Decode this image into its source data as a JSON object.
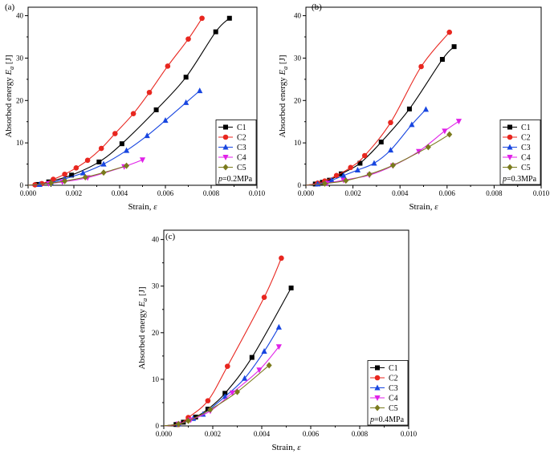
{
  "chart_data": [
    {
      "type": "line",
      "panel_label": "(a)",
      "xlabel": "Strain, ε",
      "ylabel": "Absorbed energy E",
      "ylabel_sub": "a",
      "ylabel_unit": " [J]",
      "xlim": [
        0,
        0.01
      ],
      "ylim": [
        0,
        42
      ],
      "xticks": [
        0,
        0.002,
        0.004,
        0.006,
        0.008,
        0.01
      ],
      "xtick_labels": [
        "0.000",
        "0.002",
        "0.004",
        "0.006",
        "0.008",
        "0.010"
      ],
      "yticks": [
        0,
        10,
        20,
        30,
        40
      ],
      "ytick_labels": [
        "0",
        "10",
        "20",
        "30",
        "40"
      ],
      "legend_position": "bottom-right",
      "legend_note": "p=0.2MPa",
      "series": [
        {
          "name": "C1",
          "color": "#000000",
          "marker": "square",
          "x": [
            0,
            0.0004,
            0.0009,
            0.0019,
            0.0031,
            0.0041,
            0.0056,
            0.0069,
            0.0082,
            0.0088
          ],
          "y": [
            0,
            0.2,
            0.8,
            2.4,
            5.5,
            9.8,
            17.8,
            25.5,
            36.2,
            39.4
          ]
        },
        {
          "name": "C2",
          "color": "#e8261f",
          "marker": "circle",
          "x": [
            0,
            0.0003,
            0.0006,
            0.0011,
            0.0016,
            0.0021,
            0.0026,
            0.0032,
            0.0038,
            0.0046,
            0.0053,
            0.0061,
            0.007,
            0.0076
          ],
          "y": [
            0,
            0.1,
            0.4,
            1.4,
            2.6,
            4.1,
            5.9,
            8.7,
            12.2,
            16.9,
            21.9,
            28.1,
            34.5,
            39.4
          ]
        },
        {
          "name": "C3",
          "color": "#1846e0",
          "marker": "triangle-up",
          "x": [
            0,
            0.0005,
            0.001,
            0.0016,
            0.0024,
            0.0033,
            0.0043,
            0.0052,
            0.006,
            0.0069,
            0.0075
          ],
          "y": [
            0,
            0.2,
            0.6,
            1.5,
            2.9,
            5.0,
            8.2,
            11.7,
            15.3,
            19.5,
            22.3
          ]
        },
        {
          "name": "C4",
          "color": "#e020e8",
          "marker": "triangle-down",
          "x": [
            0,
            0.0009,
            0.0015,
            0.0026,
            0.0042,
            0.005
          ],
          "y": [
            0,
            0.4,
            0.8,
            1.8,
            4.4,
            6.0
          ]
        },
        {
          "name": "C5",
          "color": "#7a7a1c",
          "marker": "diamond",
          "x": [
            0,
            0.001,
            0.0016,
            0.0025,
            0.0033,
            0.0043
          ],
          "y": [
            0,
            0.5,
            1.0,
            1.9,
            3.0,
            4.6
          ]
        }
      ]
    },
    {
      "type": "line",
      "panel_label": "(b)",
      "xlabel": "Strain, ε",
      "ylabel": "Absorbed energy E",
      "ylabel_sub": "a",
      "ylabel_unit": " [J]",
      "xlim": [
        0,
        0.01
      ],
      "ylim": [
        0,
        42
      ],
      "xticks": [
        0,
        0.002,
        0.004,
        0.006,
        0.008,
        0.01
      ],
      "xtick_labels": [
        "0.000",
        "0.002",
        "0.004",
        "0.006",
        "0.008",
        "0.010"
      ],
      "yticks": [
        0,
        10,
        20,
        30,
        40
      ],
      "ytick_labels": [
        "0",
        "10",
        "20",
        "30",
        "40"
      ],
      "legend_position": "bottom-right",
      "legend_note": "p=0.3MPa",
      "series": [
        {
          "name": "C1",
          "color": "#000000",
          "marker": "square",
          "x": [
            0,
            0.0004,
            0.0007,
            0.001,
            0.0015,
            0.0023,
            0.0032,
            0.0044,
            0.0058,
            0.0063
          ],
          "y": [
            0,
            0.3,
            0.7,
            1.2,
            2.7,
            5.2,
            10.2,
            18.0,
            29.7,
            32.7
          ]
        },
        {
          "name": "C2",
          "color": "#e8261f",
          "marker": "circle",
          "x": [
            0,
            0.0005,
            0.0008,
            0.0013,
            0.0019,
            0.0025,
            0.0036,
            0.0049,
            0.0061
          ],
          "y": [
            0,
            0.5,
            1.0,
            2.3,
            4.2,
            7.0,
            14.8,
            28.0,
            36.1
          ]
        },
        {
          "name": "C3",
          "color": "#1846e0",
          "marker": "triangle-up",
          "x": [
            0,
            0.0005,
            0.0011,
            0.0016,
            0.0022,
            0.0029,
            0.0036,
            0.0045,
            0.0051
          ],
          "y": [
            0,
            0.3,
            1.2,
            2.3,
            3.6,
            5.2,
            8.3,
            14.3,
            17.9
          ]
        },
        {
          "name": "C4",
          "color": "#e020e8",
          "marker": "triangle-down",
          "x": [
            0,
            0.0009,
            0.0016,
            0.0027,
            0.0037,
            0.0048,
            0.0059,
            0.0065
          ],
          "y": [
            0,
            0.5,
            1.2,
            2.4,
            4.6,
            8.0,
            12.8,
            15.1
          ]
        },
        {
          "name": "C5",
          "color": "#7a7a1c",
          "marker": "diamond",
          "x": [
            0,
            0.0008,
            0.0017,
            0.0027,
            0.0037,
            0.0052,
            0.0061
          ],
          "y": [
            0,
            0.4,
            1.1,
            2.6,
            4.7,
            9.0,
            12.0
          ]
        }
      ]
    },
    {
      "type": "line",
      "panel_label": "(c)",
      "xlabel": "Strain, ε",
      "ylabel": "Absorbed energy E",
      "ylabel_sub": "a",
      "ylabel_unit": " [J]",
      "xlim": [
        0,
        0.01
      ],
      "ylim": [
        0,
        42
      ],
      "xticks": [
        0,
        0.002,
        0.004,
        0.006,
        0.008,
        0.01
      ],
      "xtick_labels": [
        "0.000",
        "0.002",
        "0.004",
        "0.006",
        "0.008",
        "0.010"
      ],
      "yticks": [
        0,
        10,
        20,
        30,
        40
      ],
      "ytick_labels": [
        "0",
        "10",
        "20",
        "30",
        "40"
      ],
      "legend_position": "bottom-right",
      "legend_note": "p=0.4MPa",
      "series": [
        {
          "name": "C1",
          "color": "#000000",
          "marker": "square",
          "x": [
            0,
            0.0005,
            0.0008,
            0.0013,
            0.0018,
            0.0025,
            0.0036,
            0.0052
          ],
          "y": [
            0,
            0.3,
            0.8,
            1.9,
            3.6,
            7.0,
            14.7,
            29.6
          ]
        },
        {
          "name": "C2",
          "color": "#e8261f",
          "marker": "circle",
          "x": [
            0,
            0.0006,
            0.001,
            0.0018,
            0.0026,
            0.0041,
            0.0048
          ],
          "y": [
            0,
            0.3,
            1.8,
            5.4,
            12.8,
            27.6,
            36.0
          ]
        },
        {
          "name": "C3",
          "color": "#1846e0",
          "marker": "triangle-up",
          "x": [
            0,
            0.0006,
            0.0012,
            0.0016,
            0.0025,
            0.0033,
            0.0041,
            0.0047
          ],
          "y": [
            0,
            0.4,
            1.6,
            2.5,
            6.3,
            10.2,
            16.0,
            21.2
          ]
        },
        {
          "name": "C4",
          "color": "#e020e8",
          "marker": "triangle-down",
          "x": [
            0,
            0.0006,
            0.0011,
            0.0019,
            0.0028,
            0.0039,
            0.0047
          ],
          "y": [
            0,
            0.4,
            1.3,
            3.2,
            7.1,
            12.0,
            17.0
          ]
        },
        {
          "name": "C5",
          "color": "#7a7a1c",
          "marker": "diamond",
          "x": [
            0,
            0.0006,
            0.001,
            0.0019,
            0.003,
            0.0043
          ],
          "y": [
            0,
            0.4,
            1.1,
            3.5,
            7.3,
            13.0
          ]
        }
      ]
    }
  ]
}
